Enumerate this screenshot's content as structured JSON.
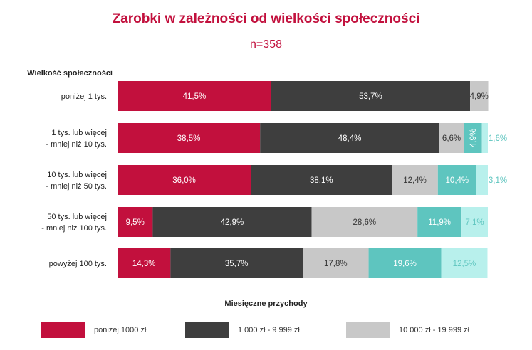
{
  "title": "Zarobki w zależności od wielkości społeczności",
  "subtitle": "n=358",
  "axis_title": "Wielkość społeczności",
  "legend_title": "Miesięczne przychody",
  "colors": {
    "crimson": "#c2103d",
    "dark": "#3e3e3e",
    "light_gray": "#c8c8c8",
    "teal": "#5ec5bf",
    "light_teal": "#b8f0ec"
  },
  "legend": [
    {
      "label": "poniżej 1000 zł",
      "color": "#c2103d"
    },
    {
      "label": "1 000 zł - 9 999 zł",
      "color": "#3e3e3e"
    },
    {
      "label": "10 000 zł - 19 999 zł",
      "color": "#c8c8c8"
    }
  ],
  "chart_data": {
    "type": "bar",
    "orientation": "horizontal",
    "stacked": true,
    "title": "Zarobki w zależności od wielkości społeczności",
    "subtitle": "n=358",
    "ylabel": "Wielkość społeczności",
    "xlabel": "Miesięczne przychody",
    "categories": [
      [
        "poniżej 1 tys."
      ],
      [
        "1 tys. lub więcej",
        "- mniej niż 10 tys."
      ],
      [
        "10 tys. lub więcej",
        "- mniej niż 50 tys."
      ],
      [
        "50 tys. lub więcej",
        "- mniej niż 100 tys."
      ],
      [
        "powyżej 100 tys."
      ]
    ],
    "series": [
      {
        "name": "poniżej 1000 zł",
        "color": "#c2103d",
        "values": [
          41.5,
          38.5,
          36.0,
          9.5,
          14.3
        ],
        "labels": [
          "41,5%",
          "38,5%",
          "36,0%",
          "9,5%",
          "14,3%"
        ]
      },
      {
        "name": "1 000 zł - 9 999 zł",
        "color": "#3e3e3e",
        "values": [
          53.7,
          48.4,
          38.1,
          42.9,
          35.7
        ],
        "labels": [
          "53,7%",
          "48,4%",
          "38,1%",
          "42,9%",
          "35,7%"
        ]
      },
      {
        "name": "10 000 zł - 19 999 zł",
        "color": "#c8c8c8",
        "values": [
          4.9,
          6.6,
          12.4,
          28.6,
          17.8
        ],
        "labels": [
          "4,9%",
          "6,6%",
          "12,4%",
          "28,6%",
          "17,8%"
        ]
      },
      {
        "color": "#5ec5bf",
        "values": [
          0,
          4.9,
          10.4,
          11.9,
          19.6
        ],
        "labels": [
          "",
          "4,9%",
          "10,4%",
          "11,9%",
          "19,6%"
        ]
      },
      {
        "color": "#b8f0ec",
        "values": [
          0,
          1.6,
          3.1,
          7.1,
          12.5
        ],
        "labels": [
          "",
          "1,6%",
          "3,1%",
          "7,1%",
          "12,5%"
        ]
      }
    ],
    "xlim": [
      0,
      100
    ]
  }
}
